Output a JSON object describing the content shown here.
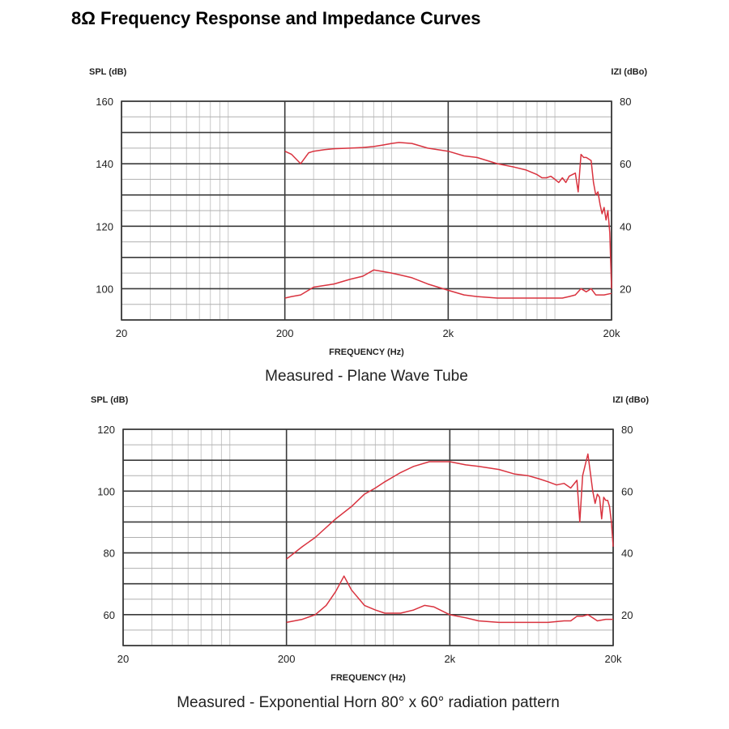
{
  "page": {
    "title": "8Ω Frequency Response and Impedance Curves"
  },
  "chart_data": [
    {
      "type": "line",
      "title": "Measured - Plane Wave Tube",
      "xlabel": "FREQUENCY (Hz)",
      "ylabel": "SPL (dB)",
      "y2label": "IZI (dBo)",
      "xscale": "log",
      "xlim": [
        20,
        20000
      ],
      "ylim": [
        90,
        160
      ],
      "y2lim": [
        10,
        80
      ],
      "xticks": [
        20,
        200,
        2000,
        20000
      ],
      "xticklabels": [
        "20",
        "200",
        "2k",
        "20k"
      ],
      "yticks": [
        100,
        120,
        140,
        160
      ],
      "yticklabels": [
        "100",
        "120",
        "140",
        "160"
      ],
      "y2ticks": [
        20,
        40,
        60,
        80
      ],
      "y2ticklabels": [
        "20",
        "40",
        "60",
        "80"
      ],
      "grid": true,
      "line_color": "#d9333f",
      "series": [
        {
          "axis": "left",
          "x": [
            200,
            220,
            250,
            280,
            300,
            350,
            400,
            500,
            600,
            700,
            800,
            900,
            1000,
            1200,
            1500,
            2000,
            2500,
            3000,
            4000,
            5000,
            6000,
            7000,
            7500,
            8000,
            8500,
            9000,
            9500,
            10000,
            10500,
            11000,
            12000,
            12500,
            13000,
            13500,
            14000,
            15000,
            15500,
            16000,
            16500,
            17000,
            17500,
            18000,
            18500,
            19000,
            19500,
            20000
          ],
          "y": [
            144,
            143,
            140,
            143.5,
            144,
            144.5,
            144.8,
            145,
            145.2,
            145.5,
            146,
            146.5,
            146.8,
            146.5,
            145,
            144,
            142.5,
            142,
            140,
            139,
            138,
            136.5,
            135.5,
            135.5,
            136,
            135,
            134,
            135.5,
            134,
            136,
            137,
            131,
            143,
            142,
            142,
            141,
            134,
            130,
            131,
            127,
            124,
            126,
            122,
            125,
            118,
            100
          ]
        },
        {
          "axis": "right",
          "x": [
            200,
            220,
            250,
            300,
            400,
            500,
            600,
            700,
            800,
            900,
            1000,
            1200,
            1500,
            2000,
            2500,
            3000,
            4000,
            5000,
            6000,
            7000,
            8000,
            9000,
            10000,
            11000,
            12000,
            13000,
            14000,
            15000,
            16000,
            18000,
            20000
          ],
          "y": [
            17,
            17.5,
            18,
            20.5,
            21.5,
            23,
            24,
            26,
            25.5,
            25,
            24.5,
            23.5,
            21.5,
            19.5,
            18,
            17.5,
            17,
            17,
            17,
            17,
            17,
            17,
            17,
            17.5,
            18,
            20,
            19,
            20,
            18,
            18,
            18.5
          ]
        }
      ]
    },
    {
      "type": "line",
      "title": "Measured - Exponential Horn 80° x 60° radiation pattern",
      "xlabel": "FREQUENCY (Hz)",
      "ylabel": "SPL (dB)",
      "y2label": "IZI (dBo)",
      "xscale": "log",
      "xlim": [
        20,
        20000
      ],
      "ylim": [
        50,
        120
      ],
      "y2lim": [
        10,
        80
      ],
      "xticks": [
        20,
        200,
        2000,
        20000
      ],
      "xticklabels": [
        "20",
        "200",
        "2k",
        "20k"
      ],
      "yticks": [
        60,
        80,
        100,
        120
      ],
      "yticklabels": [
        "60",
        "80",
        "100",
        "120"
      ],
      "y2ticks": [
        20,
        40,
        60,
        80
      ],
      "y2ticklabels": [
        "20",
        "40",
        "60",
        "80"
      ],
      "grid": true,
      "line_color": "#d9333f",
      "series": [
        {
          "axis": "left",
          "x": [
            200,
            250,
            300,
            400,
            500,
            600,
            700,
            800,
            1000,
            1200,
            1500,
            1800,
            2000,
            2500,
            3000,
            4000,
            5000,
            6000,
            7000,
            8000,
            9000,
            10000,
            11000,
            12000,
            12500,
            13000,
            14000,
            15000,
            15500,
            16000,
            16500,
            17000,
            17500,
            18000,
            18500,
            19000,
            19500,
            20000
          ],
          "y": [
            78,
            82,
            85,
            91,
            95,
            99,
            101,
            103,
            106,
            108,
            109.5,
            109.5,
            109.5,
            108.5,
            108,
            107,
            105.5,
            105,
            104,
            103,
            102,
            102.5,
            101,
            103.5,
            90,
            105,
            112,
            100,
            96,
            99,
            98,
            91,
            98,
            97,
            97,
            95,
            90,
            82
          ]
        },
        {
          "axis": "right",
          "x": [
            200,
            250,
            300,
            350,
            400,
            450,
            500,
            600,
            700,
            800,
            1000,
            1200,
            1400,
            1600,
            2000,
            2500,
            3000,
            4000,
            5000,
            6000,
            8000,
            10000,
            11000,
            12000,
            13000,
            14000,
            15000,
            16000,
            18000,
            20000
          ],
          "y": [
            17.5,
            18.5,
            20,
            23,
            27.5,
            32.5,
            28,
            23,
            21.5,
            20.5,
            20.5,
            21.5,
            23,
            22.5,
            20,
            19,
            18,
            17.5,
            17.5,
            17.5,
            17.5,
            18,
            18,
            19.5,
            19.5,
            20,
            19,
            18,
            18.5,
            18.5
          ]
        }
      ]
    }
  ]
}
